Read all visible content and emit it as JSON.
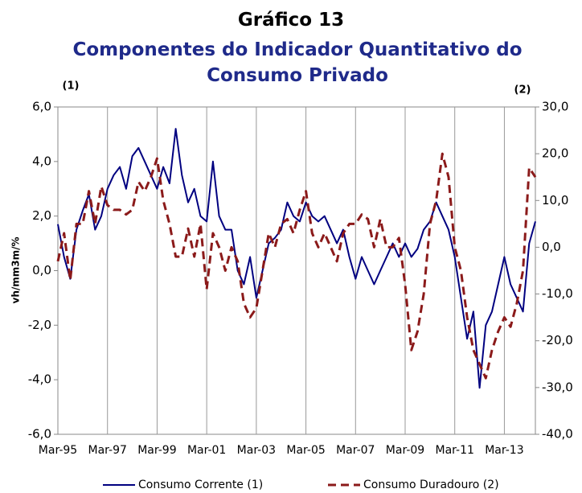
{
  "chart_data": {
    "type": "line",
    "title": "Gráfico 13",
    "subtitle": "Componentes do Indicador Quantitativo do Consumo Privado",
    "left_axis_note": "(1)",
    "right_axis_note": "(2)",
    "ylabel": "vh/mm3m/%",
    "categories": [
      "Mar-95",
      null,
      null,
      null,
      null,
      null,
      null,
      null,
      "Mar-97",
      null,
      null,
      null,
      null,
      null,
      null,
      null,
      "Mar-99",
      null,
      null,
      null,
      null,
      null,
      null,
      null,
      "Mar-01",
      null,
      null,
      null,
      null,
      null,
      null,
      null,
      "Mar-03",
      null,
      null,
      null,
      null,
      null,
      null,
      null,
      "Mar-05",
      null,
      null,
      null,
      null,
      null,
      null,
      null,
      "Mar-07",
      null,
      null,
      null,
      null,
      null,
      null,
      null,
      "Mar-09",
      null,
      null,
      null,
      null,
      null,
      null,
      null,
      "Mar-11",
      null,
      null,
      null,
      null,
      null,
      null,
      null,
      "Mar-13",
      null,
      null,
      null,
      null,
      null
    ],
    "series": [
      {
        "name": "Consumo Corrente (1)",
        "color": "#000080",
        "dash": false,
        "values": [
          1.7,
          0.5,
          -0.3,
          1.5,
          2.2,
          2.8,
          1.5,
          2.0,
          3.0,
          3.5,
          3.8,
          3.0,
          4.2,
          4.5,
          4.0,
          3.5,
          3.0,
          3.8,
          3.2,
          5.2,
          3.5,
          2.5,
          3.0,
          2.0,
          1.8,
          4.0,
          2.0,
          1.5,
          1.5,
          0.0,
          -0.5,
          0.5,
          -1.0,
          0.0,
          1.0,
          1.2,
          1.5,
          2.5,
          2.0,
          1.8,
          2.5,
          2.0,
          1.8,
          2.0,
          1.5,
          1.0,
          1.5,
          0.5,
          -0.3,
          0.5,
          0.0,
          -0.5,
          0.0,
          0.5,
          1.0,
          0.5,
          1.0,
          0.5,
          0.8,
          1.5,
          1.8,
          2.5,
          2.0,
          1.5,
          0.5,
          -1.0,
          -2.5,
          -1.5,
          -4.3,
          -2.0,
          -1.5,
          -0.5,
          0.5,
          -0.5,
          -1.0,
          -1.5,
          1.0,
          1.8
        ]
      },
      {
        "name": "Consumo Duradouro (2)",
        "color": "#8b1a1a",
        "dash": true,
        "axis": "y2",
        "values": [
          -3,
          3,
          -7,
          5,
          5,
          12,
          5,
          13,
          9,
          8,
          8,
          7,
          8,
          14,
          12,
          15,
          19,
          10,
          5,
          -2,
          -2,
          4,
          -2,
          5,
          -9,
          3,
          0,
          -5,
          0,
          -3,
          -12,
          -15,
          -13,
          -5,
          3,
          0,
          5,
          6,
          3,
          8,
          12,
          3,
          0,
          3,
          0,
          -3,
          3,
          5,
          5,
          7,
          6,
          0,
          6,
          0,
          0,
          2,
          -8,
          -22,
          -18,
          -10,
          5,
          10,
          20,
          15,
          0,
          -5,
          -15,
          -22,
          -25,
          -28,
          -22,
          -18,
          -15,
          -17,
          -12,
          -5,
          17,
          15
        ]
      }
    ],
    "ylim": [
      -6,
      6
    ],
    "yticks": [
      {
        "value": -6,
        "label": "-6,0"
      },
      {
        "value": -4,
        "label": "-4,0"
      },
      {
        "value": -2,
        "label": "-2,0"
      },
      {
        "value": 0,
        "label": "0,0"
      },
      {
        "value": 2,
        "label": "2,0"
      },
      {
        "value": 4,
        "label": "4,0"
      },
      {
        "value": 6,
        "label": "6,0"
      }
    ],
    "y2lim": [
      -40,
      30
    ],
    "y2ticks": [
      {
        "value": -40,
        "label": "-40,0"
      },
      {
        "value": -30,
        "label": "-30,0"
      },
      {
        "value": -20,
        "label": "-20,0"
      },
      {
        "value": -10,
        "label": "-10,0"
      },
      {
        "value": 0,
        "label": "0,0"
      },
      {
        "value": 10,
        "label": "10,0"
      },
      {
        "value": 20,
        "label": "20,0"
      },
      {
        "value": 30,
        "label": "30,0"
      }
    ],
    "grid": "x",
    "legend": "bottom"
  }
}
